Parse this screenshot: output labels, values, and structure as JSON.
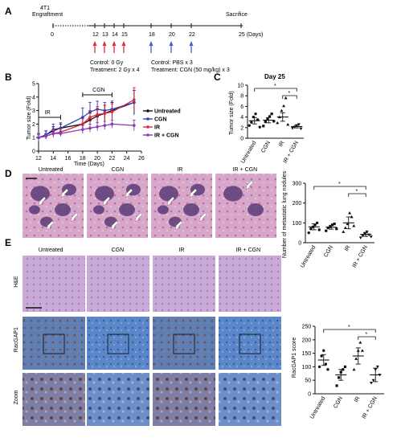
{
  "panels": {
    "A": {
      "letter": "A",
      "engraftment": "4T1\nEngraftment",
      "sacrifice": "Sacrifice",
      "ticks": [
        "0",
        "12",
        "13",
        "14",
        "15",
        "18",
        "20",
        "22",
        "25 (Days)"
      ],
      "red_arrow_days": [
        12,
        13,
        14,
        15
      ],
      "blue_arrow_days": [
        18,
        20,
        22
      ],
      "ir_control": "Control: 0 Gy",
      "ir_treatment": "Treatment: 2 Gy x 4",
      "cgn_control": "Control: PBS x 3",
      "cgn_treatment": "Treatment: CGN (50 mg/kg) x 3",
      "colors": {
        "ir_arrow": "#e0303a",
        "cgn_arrow": "#4a5fcf"
      }
    },
    "B": {
      "letter": "B"
    },
    "C": {
      "letter": "C"
    },
    "D": {
      "letter": "D"
    },
    "E": {
      "letter": "E"
    }
  },
  "micro": {
    "d_labels": [
      "Untreated",
      "CGN",
      "IR",
      "IR + CGN"
    ],
    "e_columns": [
      "Untreated",
      "CGN",
      "IR",
      "IR + CGN"
    ],
    "e_rows": [
      "H&E",
      "RacGAP1",
      "Zoom"
    ]
  },
  "chart_data": [
    {
      "id": "B",
      "type": "line",
      "title": "",
      "xlabel": "Time (Days)",
      "ylabel": "Tumor size (Fold)",
      "xlim": [
        12,
        26
      ],
      "ylim": [
        0,
        5
      ],
      "xticks": [
        12,
        14,
        16,
        18,
        20,
        22,
        24,
        26
      ],
      "yticks": [
        0,
        1,
        2,
        3,
        4,
        5
      ],
      "x": [
        12,
        13,
        14,
        15,
        18,
        19,
        20,
        21,
        22,
        25
      ],
      "annotations": [
        {
          "text": "IR",
          "from": 12,
          "to": 15
        },
        {
          "text": "CGN",
          "from": 18,
          "to": 22
        }
      ],
      "legend_position": "right",
      "series": [
        {
          "name": "Untreated",
          "color": "#111111",
          "values": [
            1.0,
            1.2,
            1.5,
            1.7,
            2.0,
            2.3,
            2.6,
            2.8,
            3.0,
            3.6
          ],
          "errors": [
            0.3,
            0.3,
            0.3,
            0.3,
            0.5,
            0.5,
            0.5,
            0.6,
            0.6,
            0.9
          ]
        },
        {
          "name": "CGN",
          "color": "#2e3fb8",
          "values": [
            1.0,
            1.2,
            1.6,
            1.7,
            2.5,
            2.9,
            3.1,
            3.0,
            3.1,
            3.6
          ],
          "errors": [
            0.3,
            0.3,
            0.4,
            0.4,
            0.7,
            0.7,
            0.6,
            0.6,
            0.6,
            0.9
          ]
        },
        {
          "name": "IR",
          "color": "#d7263d",
          "values": [
            1.0,
            1.1,
            1.3,
            1.4,
            2.0,
            2.5,
            2.7,
            2.8,
            2.9,
            3.8
          ],
          "errors": [
            0.2,
            0.2,
            0.3,
            0.3,
            0.4,
            0.5,
            0.6,
            0.6,
            0.6,
            0.9
          ]
        },
        {
          "name": "IR + CGN",
          "color": "#8a3ab9",
          "values": [
            1.0,
            1.1,
            1.3,
            1.3,
            1.6,
            1.7,
            1.8,
            1.9,
            2.0,
            1.9
          ],
          "errors": [
            0.2,
            0.2,
            0.2,
            0.2,
            0.3,
            0.3,
            0.3,
            0.3,
            0.3,
            0.4
          ]
        }
      ]
    },
    {
      "id": "C",
      "type": "scatter",
      "title": "Day 25",
      "xlabel": "",
      "ylabel": "Tumor size (Fold)",
      "ylim": [
        0,
        10
      ],
      "yticks": [
        0,
        2,
        4,
        6,
        8,
        10
      ],
      "categories": [
        "Untreated",
        "CGN",
        "IR",
        "IR + CGN"
      ],
      "means": [
        3.3,
        3.4,
        4.0,
        2.2
      ],
      "sems": [
        0.6,
        0.5,
        0.8,
        0.25
      ],
      "points": [
        [
          2.4,
          3.0,
          4.0,
          4.6,
          3.5,
          2.1
        ],
        [
          2.3,
          3.1,
          3.6,
          4.1,
          4.6,
          3.2
        ],
        [
          2.9,
          4.0,
          5.2,
          6.1,
          7.6,
          2.6
        ],
        [
          1.9,
          2.1,
          2.4,
          2.6,
          1.8
        ]
      ],
      "significance": [
        {
          "pair": [
            0,
            3
          ],
          "label": "*"
        },
        {
          "pair": [
            2,
            3
          ],
          "label": "*"
        }
      ]
    },
    {
      "id": "D",
      "type": "scatter",
      "title": "",
      "xlabel": "",
      "ylabel": "Number of metastatic lung nodules",
      "ylim": [
        0,
        300
      ],
      "yticks": [
        0,
        100,
        200,
        300
      ],
      "categories": [
        "Untreated",
        "CGN",
        "IR",
        "IR + CGN"
      ],
      "means": [
        80,
        78,
        100,
        42
      ],
      "sems": [
        15,
        10,
        30,
        10
      ],
      "points": [
        [
          50,
          70,
          80,
          90,
          100,
          65
        ],
        [
          60,
          75,
          80,
          90,
          95,
          70
        ],
        [
          55,
          75,
          95,
          150,
          130,
          85
        ],
        [
          25,
          35,
          45,
          55,
          40,
          30
        ]
      ],
      "significance": [
        {
          "pair": [
            0,
            3
          ],
          "label": "*"
        },
        {
          "pair": [
            2,
            3
          ],
          "label": "*"
        }
      ]
    },
    {
      "id": "E",
      "type": "scatter",
      "title": "",
      "xlabel": "",
      "ylabel": "RacGAP1 score",
      "ylim": [
        0,
        250
      ],
      "yticks": [
        0,
        50,
        100,
        150,
        200,
        250
      ],
      "categories": [
        "Untreated",
        "CGN",
        "IR",
        "IR + CGN"
      ],
      "means": [
        125,
        70,
        140,
        70
      ],
      "sems": [
        20,
        20,
        30,
        25
      ],
      "points": [
        [
          100,
          140,
          160,
          110,
          90
        ],
        [
          30,
          60,
          80,
          90,
          100
        ],
        [
          90,
          130,
          160,
          190,
          160
        ],
        [
          40,
          50,
          90,
          100,
          70
        ]
      ],
      "significance": [
        {
          "pair": [
            0,
            3
          ],
          "label": "*"
        },
        {
          "pair": [
            2,
            3
          ],
          "label": "*"
        }
      ]
    }
  ]
}
